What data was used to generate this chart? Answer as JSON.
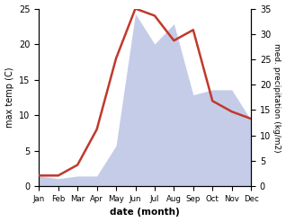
{
  "months": [
    "Jan",
    "Feb",
    "Mar",
    "Apr",
    "May",
    "Jun",
    "Jul",
    "Aug",
    "Sep",
    "Oct",
    "Nov",
    "Dec"
  ],
  "temperature": [
    1.5,
    1.5,
    3.0,
    8.0,
    18.0,
    25.0,
    24.0,
    20.5,
    22.0,
    12.0,
    10.5,
    9.5
  ],
  "precipitation": [
    2.0,
    1.5,
    2.0,
    2.0,
    8.0,
    34.0,
    28.0,
    32.0,
    18.0,
    19.0,
    19.0,
    13.0
  ],
  "temp_color": "#c0392b",
  "precip_fill_color": "#c5cce8",
  "temp_ylim": [
    0,
    25
  ],
  "temp_yticks": [
    0,
    5,
    10,
    15,
    20,
    25
  ],
  "precip_ylim": [
    0,
    35
  ],
  "precip_yticks": [
    0,
    5,
    10,
    15,
    20,
    25,
    30,
    35
  ],
  "xlabel": "date (month)",
  "ylabel_left": "max temp (C)",
  "ylabel_right": "med. precipitation (kg/m2)",
  "fig_width": 3.18,
  "fig_height": 2.47,
  "dpi": 100
}
